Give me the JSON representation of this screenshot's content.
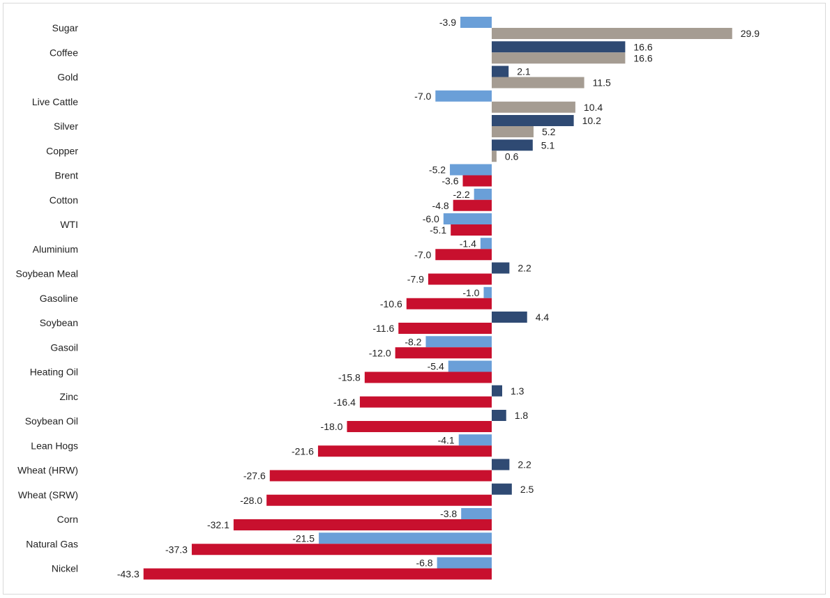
{
  "chart_data": {
    "type": "bar",
    "orientation": "horizontal",
    "categories": [
      "Sugar",
      "Coffee",
      "Gold",
      "Live Cattle",
      "Silver",
      "Copper",
      "Brent",
      "Cotton",
      "WTI",
      "Aluminium",
      "Soybean Meal",
      "Gasoline",
      "Soybean",
      "Gasoil",
      "Heating Oil",
      "Zinc",
      "Soybean Oil",
      "Lean Hogs",
      "Wheat (HRW)",
      "Wheat (SRW)",
      "Corn",
      "Natural Gas",
      "Nickel"
    ],
    "series": [
      {
        "values": [
          -3.9,
          16.6,
          2.1,
          -7.0,
          10.2,
          5.1,
          -5.2,
          -2.2,
          -6.0,
          -1.4,
          2.2,
          -1.0,
          4.4,
          -8.2,
          -5.4,
          1.3,
          1.8,
          -4.1,
          2.2,
          2.5,
          -3.8,
          -21.5,
          -6.8
        ]
      },
      {
        "values": [
          29.9,
          16.6,
          11.5,
          10.4,
          5.2,
          0.6,
          -3.6,
          -4.8,
          -5.1,
          -7.0,
          -7.9,
          -10.6,
          -11.6,
          -12.0,
          -15.8,
          -16.4,
          -18.0,
          -21.6,
          -27.6,
          -28.0,
          -32.1,
          -37.3,
          -43.3
        ]
      }
    ],
    "value_labels": {
      "top": [
        "-3.9",
        "16.6",
        "2.1",
        "-7.0",
        "10.2",
        "5.1",
        "-5.2",
        "-2.2",
        "-6.0",
        "-1.4",
        "2.2",
        "-1.0",
        "4.4",
        "-8.2",
        "-5.4",
        "1.3",
        "1.8",
        "-4.1",
        "2.2",
        "2.5",
        "-3.8",
        "-21.5",
        "-6.8"
      ],
      "bottom": [
        "29.9",
        "16.6",
        "11.5",
        "10.4",
        "5.2",
        "0.6",
        "-3.6",
        "-4.8",
        "-5.1",
        "-7.0",
        "-7.9",
        "-10.6",
        "-11.6",
        "-12.0",
        "-15.8",
        "-16.4",
        "-18.0",
        "-21.6",
        "-27.6",
        "-28.0",
        "-32.1",
        "-37.3",
        "-43.3"
      ]
    },
    "colors": {
      "top_positive": "#2f4a73",
      "top_negative": "#6a9fd8",
      "bottom_positive": "#a59c92",
      "bottom_negative": "#c8102e",
      "label": "#222222"
    },
    "xlim": [
      -43.3,
      29.9
    ],
    "grid": false,
    "legend": "none"
  }
}
